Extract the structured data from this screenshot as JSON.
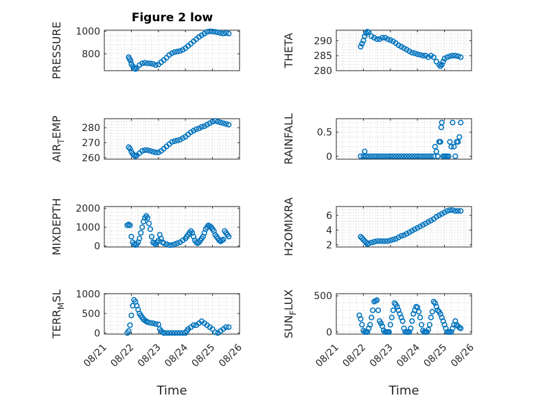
{
  "figure": {
    "title": "Figure 2 low"
  },
  "chart_data": [
    {
      "type": "scatter",
      "ylabel": "PRESSURE",
      "ylabel_sub": "",
      "ylim": [
        650,
        1010
      ],
      "yticks": [
        800,
        1000
      ],
      "ytick_labels": [
        "800",
        "1000"
      ],
      "x": [
        21.9,
        21.93,
        21.97,
        22.0,
        22.05,
        22.1,
        22.15,
        22.2,
        22.3,
        22.4,
        22.5,
        22.6,
        22.7,
        22.8,
        22.9,
        23.0,
        23.1,
        23.2,
        23.3,
        23.4,
        23.5,
        23.6,
        23.7,
        23.8,
        23.9,
        24.0,
        24.1,
        24.2,
        24.3,
        24.4,
        24.5,
        24.6,
        24.7,
        24.8,
        24.9,
        25.0,
        25.1,
        25.2,
        25.3,
        25.4,
        25.5,
        25.6
      ],
      "y": [
        770,
        755,
        740,
        710,
        690,
        670,
        665,
        675,
        700,
        715,
        720,
        715,
        715,
        710,
        700,
        705,
        725,
        745,
        765,
        790,
        805,
        815,
        820,
        825,
        835,
        850,
        870,
        890,
        910,
        930,
        950,
        965,
        980,
        995,
        1000,
        998,
        995,
        990,
        985,
        980,
        985,
        980
      ]
    },
    {
      "type": "scatter",
      "ylabel": "THETA",
      "ylabel_sub": "",
      "ylim": [
        280,
        293.5
      ],
      "yticks": [
        280,
        285,
        290
      ],
      "ytick_labels": [
        "280",
        "285",
        "290"
      ],
      "x": [
        21.9,
        21.95,
        22.0,
        22.05,
        22.1,
        22.15,
        22.2,
        22.3,
        22.4,
        22.5,
        22.6,
        22.7,
        22.8,
        22.9,
        23.0,
        23.1,
        23.2,
        23.3,
        23.4,
        23.5,
        23.6,
        23.7,
        23.8,
        23.9,
        24.0,
        24.1,
        24.2,
        24.3,
        24.4,
        24.5,
        24.6,
        24.7,
        24.8,
        24.85,
        24.9,
        24.95,
        25.0,
        25.1,
        25.2,
        25.3,
        25.4,
        25.5,
        25.6
      ],
      "y": [
        288,
        289,
        290,
        291.5,
        292.5,
        293,
        292.8,
        291.5,
        291,
        290.5,
        290.5,
        291,
        291,
        290.5,
        290.2,
        289.8,
        289.2,
        288.5,
        288,
        287.5,
        287,
        286.5,
        286,
        285.8,
        285.5,
        285.3,
        285,
        285,
        284.5,
        285,
        284.5,
        283,
        282,
        281.5,
        282,
        283,
        284,
        284.5,
        284.8,
        285,
        285,
        284.8,
        284.5
      ]
    },
    {
      "type": "scatter",
      "ylabel": "AIR",
      "ylabel_sub": "T",
      "ylabel_suffix": "EMP",
      "ylim": [
        259,
        286
      ],
      "yticks": [
        260,
        270,
        280
      ],
      "ytick_labels": [
        "260",
        "270",
        "280"
      ],
      "x": [
        21.9,
        21.95,
        22.0,
        22.05,
        22.1,
        22.15,
        22.2,
        22.3,
        22.4,
        22.5,
        22.6,
        22.7,
        22.8,
        22.9,
        23.0,
        23.1,
        23.2,
        23.3,
        23.4,
        23.5,
        23.6,
        23.7,
        23.8,
        23.9,
        24.0,
        24.1,
        24.2,
        24.3,
        24.4,
        24.5,
        24.6,
        24.7,
        24.8,
        24.9,
        25.0,
        25.1,
        25.2,
        25.3,
        25.4,
        25.5,
        25.6
      ],
      "y": [
        267,
        266,
        264,
        262.5,
        261.5,
        261,
        261.5,
        263,
        264.5,
        265,
        265,
        264.5,
        264,
        263.5,
        263.5,
        264.5,
        266,
        267.5,
        269,
        270.5,
        271,
        271.5,
        272,
        273,
        274,
        275.5,
        277,
        278,
        279,
        279.5,
        280.5,
        281,
        282,
        283,
        284,
        284.5,
        284,
        283.5,
        283,
        282.5,
        282
      ]
    },
    {
      "type": "scatter",
      "ylabel": "RAINFALL",
      "ylabel_sub": "",
      "ylim": [
        -0.06,
        0.78
      ],
      "yticks": [
        0,
        0.5
      ],
      "ytick_labels": [
        "0",
        "0.5"
      ],
      "x": [
        21.9,
        22.0,
        22.05,
        22.1,
        22.2,
        22.3,
        22.4,
        22.5,
        22.6,
        22.7,
        22.8,
        22.9,
        23.0,
        23.1,
        23.2,
        23.3,
        23.4,
        23.5,
        23.6,
        23.7,
        23.8,
        23.9,
        24.0,
        24.1,
        24.2,
        24.3,
        24.4,
        24.5,
        24.6,
        24.65,
        24.7,
        24.75,
        24.8,
        24.82,
        24.85,
        24.88,
        24.9,
        24.95,
        25.0,
        25.05,
        25.1,
        25.15,
        25.2,
        25.25,
        25.3,
        25.35,
        25.4,
        25.45,
        25.5,
        25.55,
        25.6
      ],
      "y": [
        0,
        0,
        0.1,
        0,
        0,
        0,
        0,
        0,
        0,
        0,
        0,
        0,
        0,
        0,
        0,
        0,
        0,
        0,
        0,
        0,
        0,
        0,
        0,
        0,
        0,
        0,
        0,
        0,
        0,
        0.2,
        0.1,
        0,
        0.3,
        0.3,
        0.3,
        0.6,
        0.7,
        0,
        0,
        0,
        0,
        0,
        0.3,
        0.2,
        0.7,
        0.2,
        0,
        0.3,
        0.3,
        0.4,
        0.7
      ]
    },
    {
      "type": "scatter",
      "ylabel": "MIXDEPTH",
      "ylabel_sub": "",
      "ylim": [
        -50,
        2100
      ],
      "yticks": [
        0,
        1000,
        2000
      ],
      "ytick_labels": [
        "0",
        "1000",
        "2000"
      ],
      "x": [
        21.85,
        21.9,
        21.95,
        22.0,
        22.05,
        22.1,
        22.15,
        22.2,
        22.25,
        22.3,
        22.35,
        22.4,
        22.45,
        22.5,
        22.55,
        22.6,
        22.65,
        22.7,
        22.75,
        22.8,
        22.85,
        22.9,
        22.95,
        23.0,
        23.05,
        23.1,
        23.15,
        23.2,
        23.3,
        23.4,
        23.5,
        23.6,
        23.7,
        23.8,
        23.9,
        24.0,
        24.05,
        24.1,
        24.15,
        24.2,
        24.25,
        24.3,
        24.35,
        24.4,
        24.45,
        24.5,
        24.55,
        24.6,
        24.65,
        24.7,
        24.75,
        24.8,
        24.85,
        24.9,
        24.95,
        25.0,
        25.05,
        25.1,
        25.15,
        25.2,
        25.25,
        25.3,
        25.35,
        25.4,
        25.45,
        25.5,
        25.55,
        25.6
      ],
      "y": [
        1100,
        1150,
        1100,
        500,
        200,
        100,
        50,
        100,
        200,
        400,
        700,
        1000,
        1300,
        1500,
        1600,
        1500,
        1200,
        900,
        500,
        200,
        150,
        100,
        200,
        300,
        600,
        400,
        200,
        150,
        100,
        50,
        50,
        100,
        150,
        200,
        300,
        400,
        500,
        600,
        700,
        800,
        700,
        500,
        300,
        200,
        150,
        200,
        300,
        400,
        500,
        700,
        900,
        1000,
        1100,
        1050,
        1000,
        900,
        800,
        600,
        500,
        400,
        300,
        250,
        300,
        350,
        800,
        700,
        600,
        500
      ]
    },
    {
      "type": "scatter",
      "ylabel": "H2OMIXRA",
      "ylabel_sub": "",
      "ylim": [
        1.7,
        7.2
      ],
      "yticks": [
        2,
        4,
        6
      ],
      "ytick_labels": [
        "2",
        "4",
        "6"
      ],
      "x": [
        21.9,
        21.95,
        22.0,
        22.05,
        22.1,
        22.15,
        22.2,
        22.3,
        22.4,
        22.5,
        22.6,
        22.7,
        22.8,
        22.9,
        23.0,
        23.1,
        23.2,
        23.3,
        23.4,
        23.5,
        23.6,
        23.7,
        23.8,
        23.9,
        24.0,
        24.1,
        24.2,
        24.3,
        24.4,
        24.5,
        24.6,
        24.7,
        24.8,
        24.9,
        25.0,
        25.1,
        25.2,
        25.3,
        25.4,
        25.5,
        25.6
      ],
      "y": [
        3.1,
        2.9,
        2.7,
        2.5,
        2.3,
        2.1,
        2.2,
        2.3,
        2.4,
        2.5,
        2.5,
        2.5,
        2.5,
        2.5,
        2.6,
        2.7,
        2.8,
        3.0,
        3.2,
        3.3,
        3.5,
        3.7,
        3.9,
        4.1,
        4.3,
        4.5,
        4.7,
        4.9,
        5.1,
        5.3,
        5.5,
        5.8,
        6.0,
        6.2,
        6.4,
        6.6,
        6.7,
        6.7,
        6.6,
        6.6,
        6.6
      ]
    },
    {
      "type": "scatter",
      "ylabel": "TERR",
      "ylabel_sub": "M",
      "ylabel_suffix": "SL",
      "ylim": [
        -30,
        1010
      ],
      "yticks": [
        0,
        500,
        1000
      ],
      "ytick_labels": [
        "0",
        "500",
        "1000"
      ],
      "x": [
        21.85,
        21.9,
        21.95,
        22.0,
        22.05,
        22.1,
        22.15,
        22.2,
        22.25,
        22.3,
        22.35,
        22.4,
        22.45,
        22.5,
        22.55,
        22.6,
        22.7,
        22.8,
        22.9,
        23.0,
        23.05,
        23.1,
        23.15,
        23.2,
        23.3,
        23.4,
        23.5,
        23.6,
        23.7,
        23.8,
        23.9,
        24.0,
        24.05,
        24.1,
        24.2,
        24.3,
        24.4,
        24.5,
        24.6,
        24.7,
        24.8,
        24.9,
        25.0,
        25.1,
        25.2,
        25.3,
        25.4,
        25.5,
        25.6
      ],
      "y": [
        0,
        50,
        200,
        450,
        700,
        850,
        800,
        700,
        600,
        500,
        450,
        400,
        350,
        320,
        300,
        280,
        260,
        250,
        230,
        220,
        100,
        50,
        20,
        0,
        0,
        0,
        0,
        0,
        0,
        0,
        0,
        0,
        50,
        100,
        150,
        200,
        200,
        250,
        300,
        250,
        200,
        150,
        100,
        20,
        0,
        50,
        100,
        150,
        150
      ]
    },
    {
      "type": "scatter",
      "ylabel": "SUN",
      "ylabel_sub": "F",
      "ylabel_suffix": "LUX",
      "ylim": [
        -30,
        530
      ],
      "yticks": [
        0,
        500
      ],
      "ytick_labels": [
        "0",
        "500"
      ],
      "x": [
        21.85,
        21.9,
        21.95,
        22.0,
        22.05,
        22.1,
        22.15,
        22.2,
        22.25,
        22.3,
        22.35,
        22.4,
        22.45,
        22.5,
        22.55,
        22.6,
        22.65,
        22.7,
        22.75,
        22.8,
        22.85,
        22.9,
        22.95,
        23.0,
        23.05,
        23.1,
        23.15,
        23.2,
        23.25,
        23.3,
        23.35,
        23.4,
        23.45,
        23.5,
        23.55,
        23.6,
        23.65,
        23.7,
        23.75,
        23.8,
        23.85,
        23.9,
        23.95,
        24.0,
        24.05,
        24.1,
        24.15,
        24.2,
        24.25,
        24.3,
        24.35,
        24.4,
        24.45,
        24.5,
        24.55,
        24.6,
        24.65,
        24.7,
        24.75,
        24.8,
        24.85,
        24.9,
        24.95,
        25.0,
        25.05,
        25.1,
        25.15,
        25.2,
        25.25,
        25.3,
        25.35,
        25.4,
        25.45,
        25.5,
        25.55,
        25.6
      ],
      "y": [
        230,
        180,
        100,
        20,
        0,
        0,
        0,
        50,
        100,
        200,
        300,
        420,
        430,
        440,
        300,
        150,
        120,
        80,
        20,
        0,
        0,
        0,
        0,
        100,
        200,
        300,
        400,
        380,
        350,
        300,
        250,
        200,
        150,
        50,
        0,
        0,
        0,
        0,
        50,
        150,
        250,
        300,
        350,
        340,
        280,
        200,
        100,
        20,
        0,
        0,
        0,
        30,
        100,
        200,
        280,
        420,
        400,
        350,
        300,
        280,
        250,
        200,
        150,
        100,
        50,
        0,
        0,
        0,
        0,
        50,
        100,
        150,
        100,
        80,
        60,
        50
      ]
    }
  ],
  "x_axis": {
    "xlim": [
      21,
      26
    ],
    "xticks": [
      21,
      22,
      23,
      24,
      25,
      26
    ],
    "xtick_labels": [
      "08/21",
      "08/22",
      "08/23",
      "08/24",
      "08/25",
      "08/26"
    ],
    "xlabel": "Time"
  },
  "colors": {
    "marker": "#0072BD",
    "axes": "#262626",
    "grid": "#d0d0d0",
    "background": "#ffffff"
  }
}
